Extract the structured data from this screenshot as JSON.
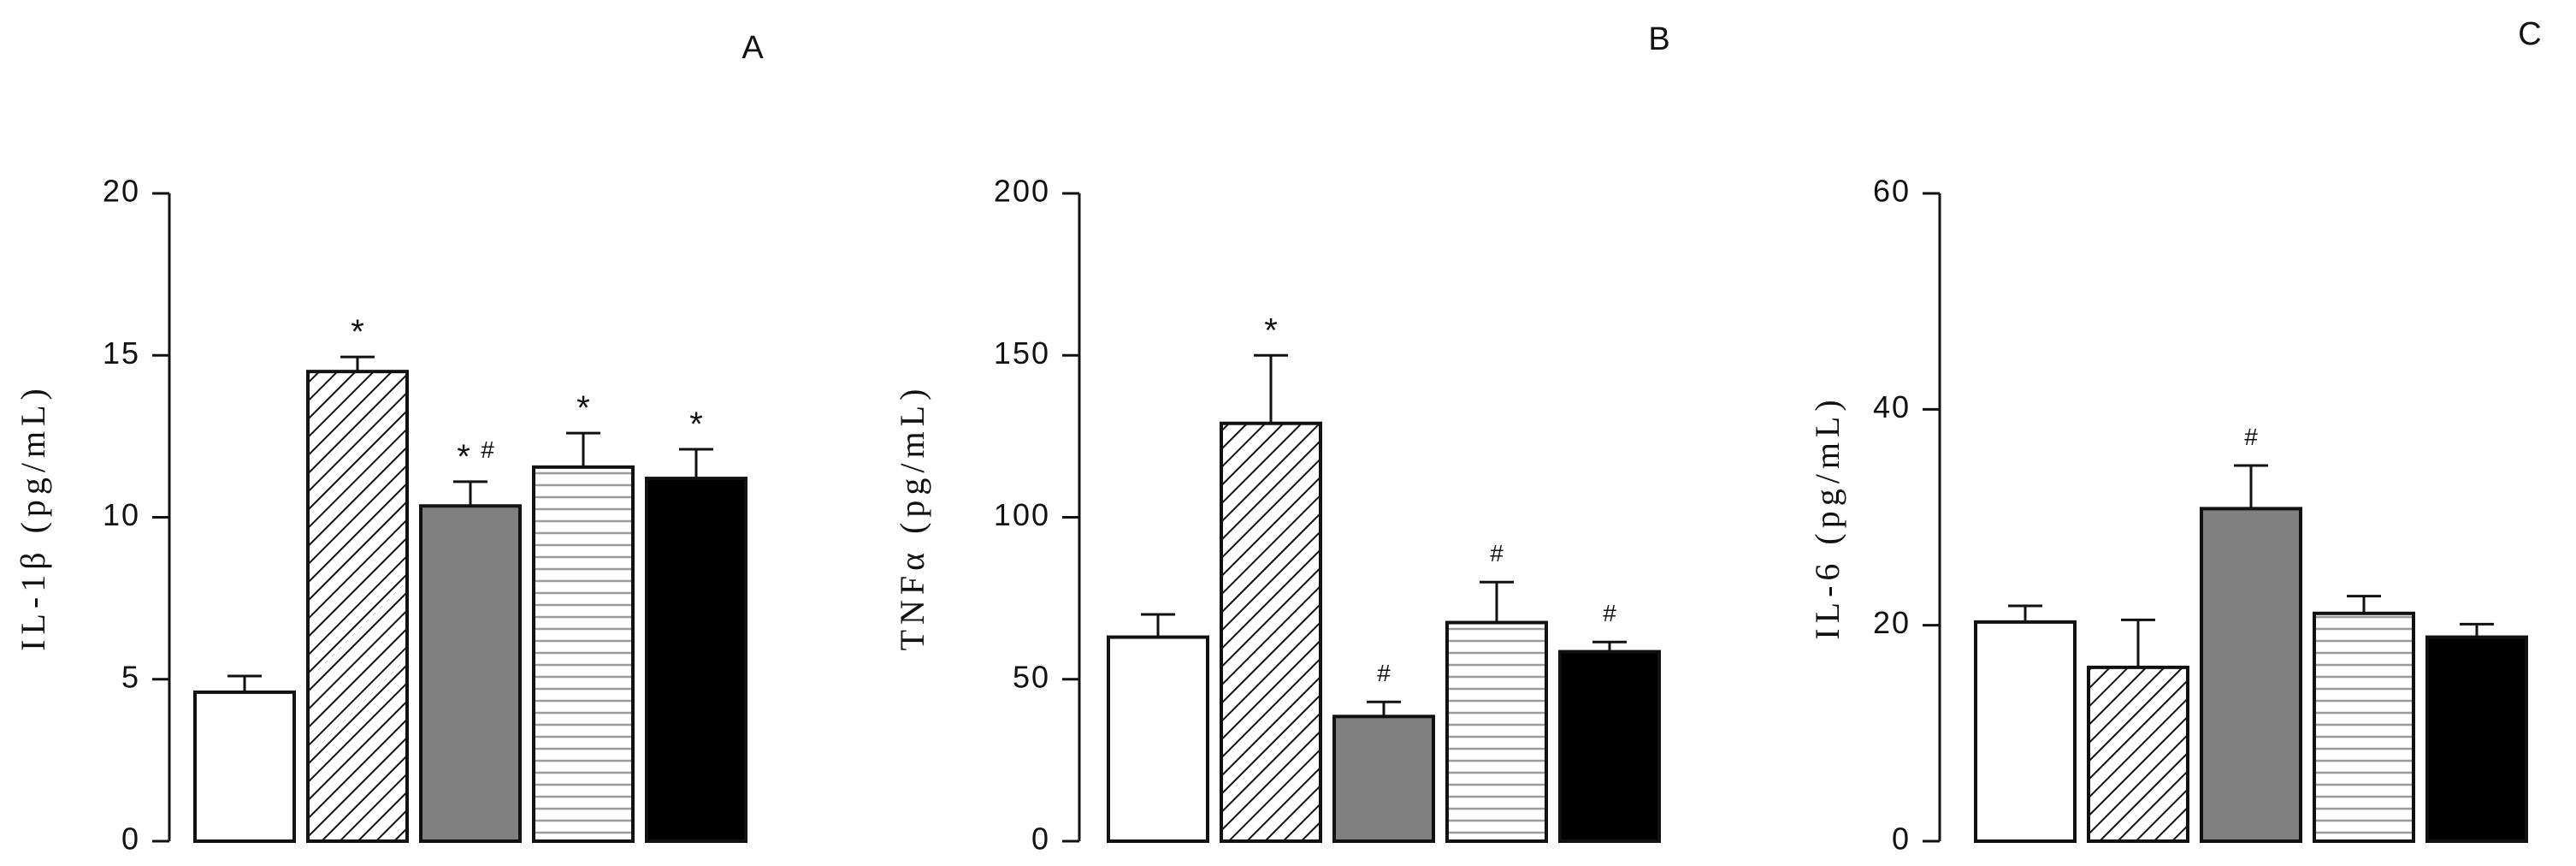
{
  "chart_data": [
    {
      "type": "bar",
      "panel_label": "A",
      "ylabel": "IL-1β (pg/mL)",
      "ylim": [
        0,
        20
      ],
      "yticks": [
        0,
        5,
        10,
        15,
        20
      ],
      "grid": false,
      "bars": [
        {
          "value": 4.6,
          "error": 0.5,
          "pattern": "open",
          "annotation": ""
        },
        {
          "value": 14.5,
          "error": 0.45,
          "pattern": "diagonal",
          "annotation": "*"
        },
        {
          "value": 10.35,
          "error": 0.75,
          "pattern": "gray",
          "annotation": "*#"
        },
        {
          "value": 11.55,
          "error": 1.05,
          "pattern": "horizontal",
          "annotation": "*"
        },
        {
          "value": 11.2,
          "error": 0.9,
          "pattern": "black",
          "annotation": "*"
        }
      ]
    },
    {
      "type": "bar",
      "panel_label": "B",
      "ylabel": "TNFα (pg/mL)",
      "ylim": [
        0,
        200
      ],
      "yticks": [
        0,
        50,
        100,
        150,
        200
      ],
      "grid": false,
      "bars": [
        {
          "value": 63,
          "error": 7,
          "pattern": "open",
          "annotation": ""
        },
        {
          "value": 129,
          "error": 21,
          "pattern": "diagonal",
          "annotation": "*"
        },
        {
          "value": 38.5,
          "error": 4.5,
          "pattern": "gray",
          "annotation": "#"
        },
        {
          "value": 67.5,
          "error": 12.5,
          "pattern": "horizontal",
          "annotation": "#"
        },
        {
          "value": 58.5,
          "error": 3,
          "pattern": "black",
          "annotation": "#"
        }
      ]
    },
    {
      "type": "bar",
      "panel_label": "C",
      "ylabel": "IL-6 (pg/mL)",
      "ylim": [
        0,
        60
      ],
      "yticks": [
        0,
        20,
        40,
        60
      ],
      "grid": false,
      "bars": [
        {
          "value": 20.3,
          "error": 1.5,
          "pattern": "open",
          "annotation": ""
        },
        {
          "value": 16.1,
          "error": 4.4,
          "pattern": "diagonal",
          "annotation": ""
        },
        {
          "value": 30.8,
          "error": 4.0,
          "pattern": "gray",
          "annotation": "#"
        },
        {
          "value": 21.1,
          "error": 1.6,
          "pattern": "horizontal",
          "annotation": ""
        },
        {
          "value": 18.9,
          "error": 1.2,
          "pattern": "black",
          "annotation": ""
        }
      ]
    }
  ],
  "colors": {
    "gray_fill": "#808080",
    "black_fill": "#000000",
    "open_fill": "#ffffff",
    "stroke": "#111111"
  }
}
